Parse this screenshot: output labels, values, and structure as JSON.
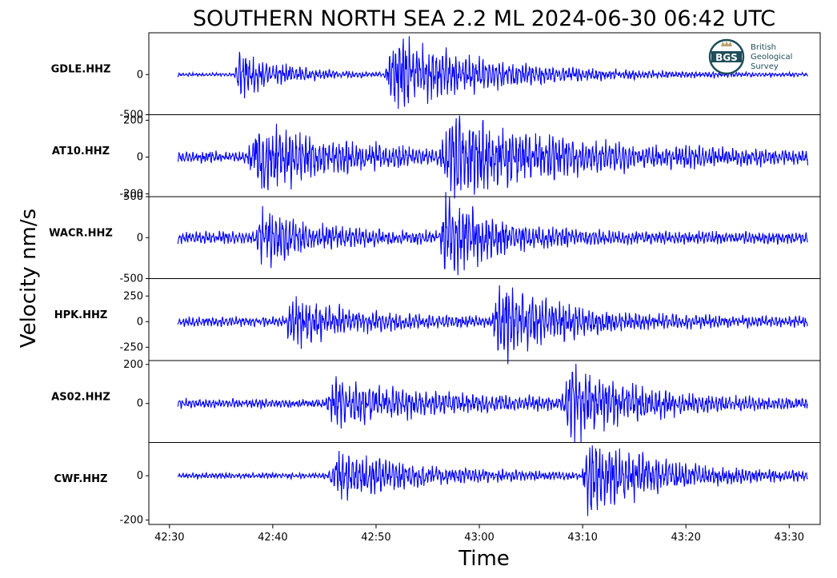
{
  "chart_data": {
    "type": "line",
    "title": "SOUTHERN NORTH SEA 2.2 ML   2024-06-30 06:42 UTC",
    "xlabel": "Time",
    "ylabel": "Velocity nm/s",
    "line_color": "#0000ff",
    "x_tick_labels": [
      "42:30",
      "42:40",
      "42:50",
      "43:00",
      "43:10",
      "43:20",
      "43:30"
    ],
    "x_tick_seconds": [
      0,
      10,
      20,
      30,
      40,
      50,
      60
    ],
    "x_range_seconds": [
      -2,
      63
    ],
    "trace_range_seconds": [
      0.8,
      61.8
    ],
    "logo": {
      "abbr": "BGS",
      "line1": "British",
      "line2": "Geological",
      "line3": "Survey"
    },
    "panels": [
      {
        "station": "GDLE.HHZ",
        "ylim": [
          -500,
          520
        ],
        "yticks": [
          0,
          -500
        ],
        "ytick_labels": [
          "0",
          "-500"
        ],
        "noise": 20,
        "seed": 11,
        "bursts": [
          {
            "t": 6.6,
            "amp": 270,
            "rise": 0.3,
            "decay": 4.5
          },
          {
            "t": 22.0,
            "amp": 430,
            "rise": 1.2,
            "decay": 9.0
          }
        ]
      },
      {
        "station": "AT10.HHZ",
        "ylim": [
          -215,
          230
        ],
        "yticks": [
          200,
          0,
          -200
        ],
        "ytick_labels": [
          "200",
          "0",
          "-200"
        ],
        "noise": 30,
        "seed": 23,
        "bursts": [
          {
            "t": 8.2,
            "amp": 170,
            "rise": 0.6,
            "decay": 8.0
          },
          {
            "t": 27.5,
            "amp": 170,
            "rise": 1.5,
            "decay": 12.0
          }
        ]
      },
      {
        "station": "WACR.HHZ",
        "ylim": [
          -500,
          500
        ],
        "yticks": [
          500,
          0,
          -500
        ],
        "ytick_labels": [
          "500",
          "0",
          "-500"
        ],
        "noise": 70,
        "seed": 37,
        "bursts": [
          {
            "t": 8.8,
            "amp": 330,
            "rise": 0.4,
            "decay": 4.5
          },
          {
            "t": 26.5,
            "amp": 440,
            "rise": 0.3,
            "decay": 5.0
          }
        ]
      },
      {
        "station": "HPK.HHZ",
        "ylim": [
          -380,
          420
        ],
        "yticks": [
          250,
          0,
          -250
        ],
        "ytick_labels": [
          "250",
          "0",
          "-250"
        ],
        "noise": 45,
        "seed": 53,
        "bursts": [
          {
            "t": 11.6,
            "amp": 210,
            "rise": 0.3,
            "decay": 6.0
          },
          {
            "t": 32.0,
            "amp": 330,
            "rise": 0.8,
            "decay": 6.5
          }
        ]
      },
      {
        "station": "AS02.HHZ",
        "ylim": [
          -200,
          220
        ],
        "yticks": [
          200,
          0
        ],
        "ytick_labels": [
          "200",
          "0"
        ],
        "noise": 22,
        "seed": 71,
        "bursts": [
          {
            "t": 16.0,
            "amp": 95,
            "rise": 1.0,
            "decay": 11.0
          },
          {
            "t": 39.0,
            "amp": 165,
            "rise": 1.0,
            "decay": 6.0
          }
        ]
      },
      {
        "station": "CWF.HHZ",
        "ylim": [
          -220,
          150
        ],
        "yticks": [
          0,
          -200
        ],
        "ytick_labels": [
          "0",
          "-200"
        ],
        "noise": 12,
        "seed": 89,
        "bursts": [
          {
            "t": 16.5,
            "amp": 100,
            "rise": 1.2,
            "decay": 8.0
          },
          {
            "t": 40.5,
            "amp": 160,
            "rise": 0.6,
            "decay": 7.5
          }
        ]
      }
    ]
  }
}
